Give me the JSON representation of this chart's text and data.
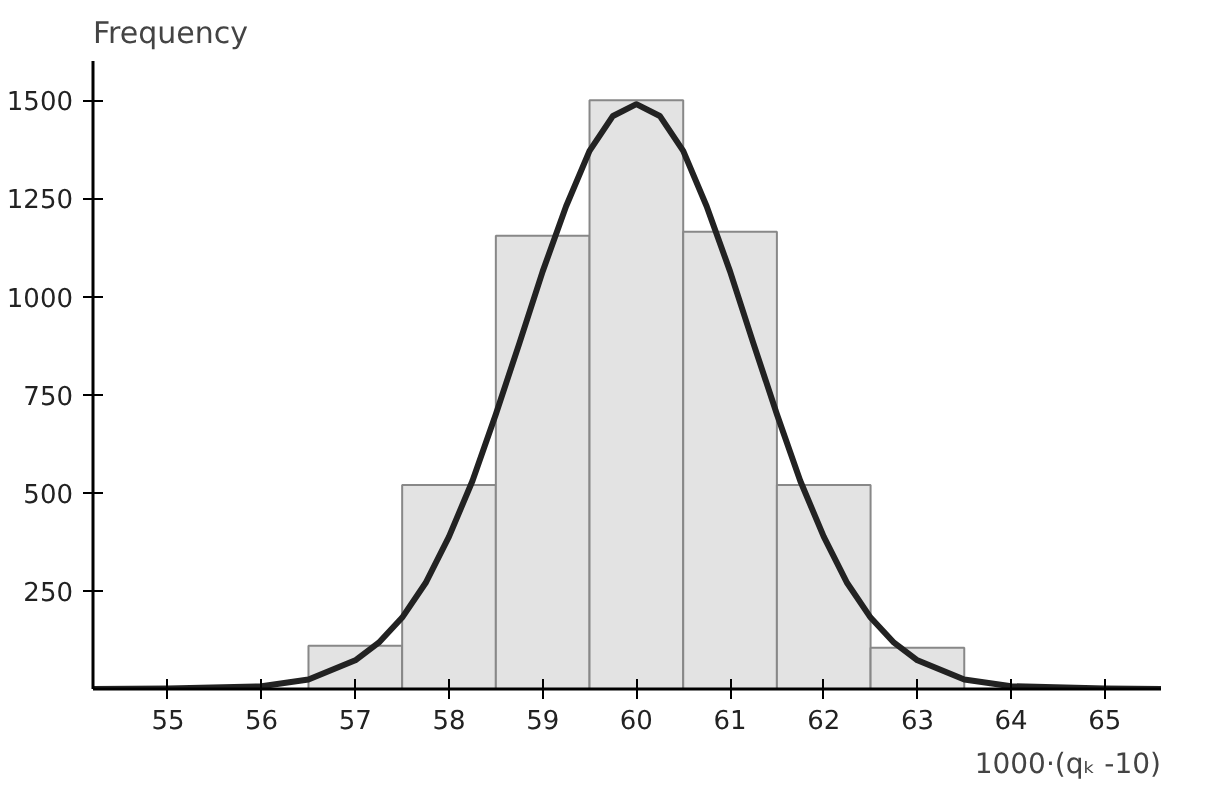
{
  "chart_data": {
    "type": "histogram",
    "ylabel": "Frequency",
    "xlabel": "1000·(qₖ -10)",
    "xlim": [
      54.2,
      65.6
    ],
    "ylim": [
      0,
      1600
    ],
    "xticks": [
      55,
      56,
      57,
      58,
      59,
      60,
      61,
      62,
      63,
      64,
      65
    ],
    "yticks": [
      250,
      500,
      750,
      1000,
      1250,
      1500
    ],
    "grid": false,
    "bins": [
      56.5,
      57.5,
      58.5,
      59.5,
      60.5,
      61.5,
      62.5,
      63.5
    ],
    "values": [
      110,
      520,
      1155,
      1500,
      1165,
      520,
      105
    ],
    "color": "#e3e3e3",
    "series": [
      {
        "type": "line",
        "color": "#222222",
        "x": [
          54.2,
          55,
          56,
          56.5,
          57,
          57.25,
          57.5,
          57.75,
          58,
          58.25,
          58.5,
          58.75,
          59,
          59.25,
          59.5,
          59.75,
          60,
          60.25,
          60.5,
          60.75,
          61,
          61.25,
          61.5,
          61.75,
          62,
          62.25,
          62.5,
          62.75,
          63,
          63.5,
          64,
          65,
          65.6
        ],
        "values": [
          0,
          1,
          7,
          24,
          73,
          118,
          182,
          270,
          388,
          530,
          700,
          880,
          1064,
          1230,
          1371,
          1460,
          1490,
          1460,
          1371,
          1230,
          1064,
          880,
          700,
          530,
          388,
          270,
          182,
          118,
          73,
          24,
          7,
          1,
          0
        ]
      }
    ]
  }
}
